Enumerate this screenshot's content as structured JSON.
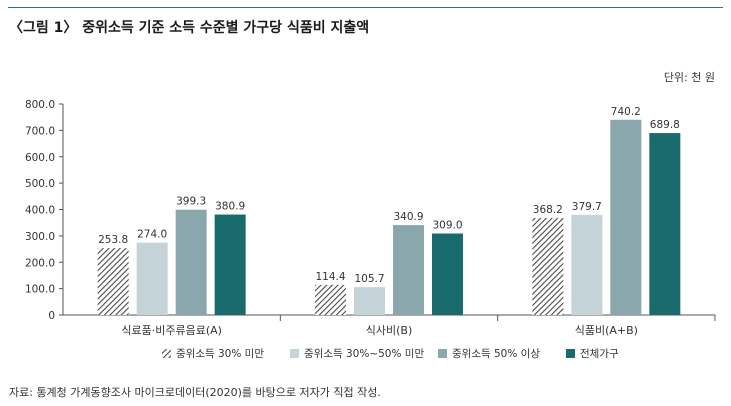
{
  "title": "〈그림 1〉 중위소득 기준 소득 수준별 가구당 식품비 지출액",
  "unit": "단위: 천 원",
  "source": "자료: 통계청 가계동향조사 마이크로데이터(2020)를 바탕으로 저자가 직접 작성.",
  "colors": {
    "s1": "#4a4a4a",
    "s2": "#c4d3d7",
    "s3": "#8aa7ad",
    "s4": "#1a6b6e",
    "rule": "#2e6f8a"
  },
  "chart_data": {
    "type": "bar",
    "title": "",
    "xlabel": "",
    "ylabel": "",
    "ylim": [
      0,
      800
    ],
    "yticks": [
      "0",
      "100.0",
      "200.0",
      "300.0",
      "400.0",
      "500.0",
      "600.0",
      "700.0",
      "800.0"
    ],
    "categories": [
      "식료품·비주류음료(A)",
      "식사비(B)",
      "식품비(A+B)"
    ],
    "series": [
      {
        "name": "중위소득 30% 미만",
        "values": [
          253.8,
          114.4,
          368.2
        ],
        "labels": [
          "253.8",
          "114.4",
          "368.2"
        ]
      },
      {
        "name": "중위소득 30%~50% 미만",
        "values": [
          274.0,
          105.7,
          379.7
        ],
        "labels": [
          "274.0",
          "105.7",
          "379.7"
        ]
      },
      {
        "name": "중위소득 50% 이상",
        "values": [
          399.3,
          340.9,
          740.2
        ],
        "labels": [
          "399.3",
          "340.9",
          "740.2"
        ]
      },
      {
        "name": "전체가구",
        "values": [
          380.9,
          309.0,
          689.8
        ],
        "labels": [
          "380.9",
          "309.0",
          "689.8"
        ]
      }
    ],
    "legend": "bottom",
    "grid": false
  }
}
